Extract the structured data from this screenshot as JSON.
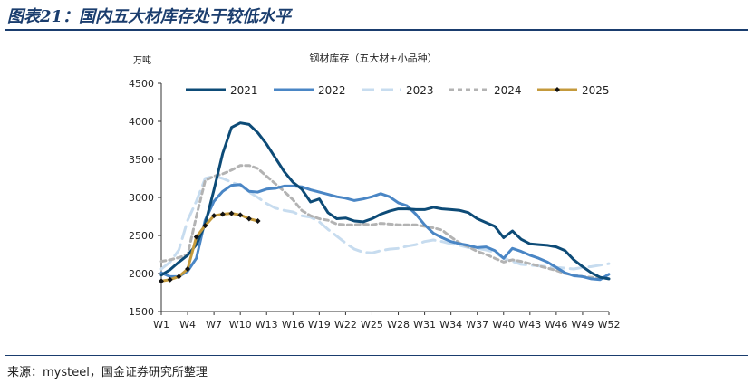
{
  "figure": {
    "title": "图表21：国内五大材库存处于较低水平",
    "source": "来源：mysteel，国金证券研究所整理"
  },
  "colors": {
    "2021": "#0d4b77",
    "2022": "#4a86c5",
    "2023": "#c7dcef",
    "2024": "#b3b3b3",
    "2025": "#c49a3c",
    "rule": "#1a3d6e"
  },
  "chart_data": {
    "type": "line",
    "title": "钢材库存（五大材+小品种）",
    "unit": "万吨",
    "ylim": [
      1500,
      4500
    ],
    "yticks": [
      "1500",
      "2000",
      "2500",
      "3000",
      "3500",
      "4000",
      "4500"
    ],
    "xlim": [
      1,
      52
    ],
    "xticks": [
      {
        "w": 1,
        "label": "W1"
      },
      {
        "w": 4,
        "label": "W4"
      },
      {
        "w": 7,
        "label": "W7"
      },
      {
        "w": 10,
        "label": "W10"
      },
      {
        "w": 13,
        "label": "W13"
      },
      {
        "w": 16,
        "label": "W16"
      },
      {
        "w": 19,
        "label": "W19"
      },
      {
        "w": 22,
        "label": "W22"
      },
      {
        "w": 25,
        "label": "W25"
      },
      {
        "w": 28,
        "label": "W28"
      },
      {
        "w": 31,
        "label": "W31"
      },
      {
        "w": 34,
        "label": "W34"
      },
      {
        "w": 37,
        "label": "W37"
      },
      {
        "w": 40,
        "label": "W40"
      },
      {
        "w": 43,
        "label": "W43"
      },
      {
        "w": 46,
        "label": "W46"
      },
      {
        "w": 49,
        "label": "W49"
      },
      {
        "w": 52,
        "label": "W52"
      }
    ],
    "grid": false,
    "legend_position": "top",
    "series": [
      {
        "name": "2021",
        "style": "solid-thick",
        "x_start": 1,
        "values": [
          1980,
          2050,
          2150,
          2240,
          2380,
          2650,
          3100,
          3580,
          3920,
          3980,
          3960,
          3850,
          3700,
          3520,
          3340,
          3200,
          3110,
          2940,
          2980,
          2800,
          2720,
          2730,
          2690,
          2680,
          2720,
          2780,
          2820,
          2850,
          2850,
          2840,
          2840,
          2870,
          2850,
          2840,
          2830,
          2800,
          2720,
          2670,
          2620,
          2470,
          2560,
          2450,
          2390,
          2380,
          2370,
          2350,
          2300,
          2180,
          2090,
          2010,
          1950,
          1930
        ]
      },
      {
        "name": "2022",
        "style": "solid",
        "x_start": 1,
        "values": [
          2010,
          1960,
          1960,
          2030,
          2200,
          2700,
          2950,
          3080,
          3160,
          3170,
          3080,
          3070,
          3110,
          3120,
          3150,
          3150,
          3140,
          3100,
          3070,
          3040,
          3010,
          2990,
          2960,
          2980,
          3010,
          3050,
          3010,
          2930,
          2890,
          2780,
          2640,
          2530,
          2470,
          2420,
          2390,
          2370,
          2340,
          2350,
          2300,
          2200,
          2330,
          2290,
          2240,
          2200,
          2150,
          2080,
          2010,
          1970,
          1960,
          1930,
          1920,
          1990
        ]
      },
      {
        "name": "2023",
        "style": "long-dash",
        "x_start": 1,
        "values": [
          2060,
          2150,
          2310,
          2700,
          2950,
          3250,
          3280,
          3250,
          3200,
          3160,
          3070,
          3000,
          2920,
          2860,
          2830,
          2810,
          2760,
          2740,
          2680,
          2580,
          2490,
          2400,
          2320,
          2280,
          2270,
          2300,
          2320,
          2330,
          2360,
          2380,
          2420,
          2440,
          2420,
          2390,
          2370,
          2340,
          2330,
          2310,
          2280,
          2200,
          2160,
          2120,
          2110,
          2100,
          2090,
          2080,
          2070,
          2060,
          2080,
          2090,
          2110,
          2130
        ]
      },
      {
        "name": "2024",
        "style": "dash",
        "x_start": 1,
        "values": [
          2160,
          2180,
          2210,
          2250,
          2750,
          3220,
          3280,
          3310,
          3360,
          3420,
          3420,
          3380,
          3280,
          3180,
          3080,
          2970,
          2830,
          2760,
          2720,
          2700,
          2650,
          2640,
          2640,
          2650,
          2640,
          2660,
          2650,
          2640,
          2640,
          2640,
          2620,
          2600,
          2570,
          2480,
          2400,
          2350,
          2290,
          2250,
          2200,
          2150,
          2180,
          2160,
          2130,
          2100,
          2070,
          2040,
          2000,
          1980,
          1960,
          1950,
          1950,
          1930
        ]
      },
      {
        "name": "2025",
        "style": "solid-markers",
        "x_start": 1,
        "values": [
          1900,
          1920,
          1960,
          2060,
          2480,
          2630,
          2760,
          2780,
          2790,
          2770,
          2720,
          2690
        ]
      }
    ]
  }
}
